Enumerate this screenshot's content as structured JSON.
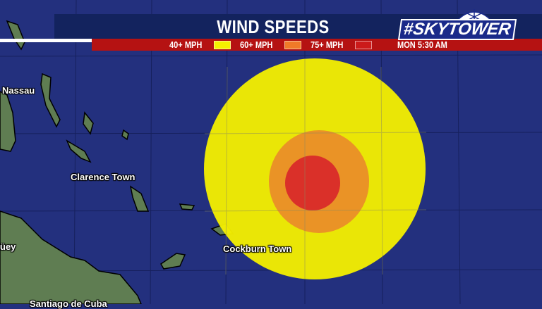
{
  "header": {
    "title": "WIND SPEEDS",
    "logo_text": "#SKYTOWER",
    "timestamp": "MON  5:30 AM"
  },
  "legend": [
    {
      "label": "40+ MPH",
      "color": "#f5f000"
    },
    {
      "label": "60+ MPH",
      "color": "#f07a28"
    },
    {
      "label": "75+ MPH",
      "color": "#cc1a1a"
    }
  ],
  "map": {
    "cities": [
      "Nassau",
      "Clarence Town",
      "Cockburn Town",
      "üey",
      "Santiago de Cuba"
    ],
    "colors": {
      "ocean": "#23307e",
      "land": "#5a7a4a"
    }
  }
}
